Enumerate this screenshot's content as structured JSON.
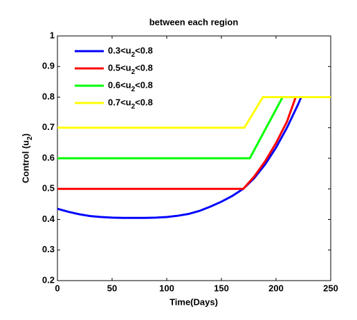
{
  "chart_data": {
    "type": "line",
    "title": "between each region",
    "x_label": "Time(Days)",
    "y_label": "Control (u2)",
    "xlim": [
      0,
      250
    ],
    "xticks": [
      0,
      50,
      100,
      150,
      200,
      250
    ],
    "ylim": [
      0.2,
      1
    ],
    "yticks": [
      0.2,
      0.3,
      0.4,
      0.5,
      0.6,
      0.7,
      0.8,
      0.9,
      1
    ],
    "grid": false,
    "legend": "upper left",
    "series": [
      {
        "name": "0.3<u2<0.8",
        "color": "#0000ff",
        "x": [
          0,
          10,
          20,
          30,
          40,
          50,
          60,
          70,
          80,
          90,
          100,
          110,
          120,
          130,
          140,
          150,
          160,
          170,
          180,
          190,
          200,
          210,
          220,
          223,
          250
        ],
        "values": [
          0.435,
          0.425,
          0.417,
          0.411,
          0.408,
          0.406,
          0.405,
          0.405,
          0.405,
          0.406,
          0.408,
          0.412,
          0.418,
          0.428,
          0.442,
          0.458,
          0.477,
          0.5,
          0.535,
          0.58,
          0.635,
          0.7,
          0.775,
          0.8,
          0.8
        ]
      },
      {
        "name": "0.5<u2<0.8",
        "color": "#ff0000",
        "x": [
          0,
          170,
          180,
          190,
          200,
          210,
          218,
          250
        ],
        "values": [
          0.5,
          0.5,
          0.54,
          0.59,
          0.65,
          0.72,
          0.8,
          0.8
        ]
      },
      {
        "name": "0.6<u2<0.8",
        "color": "#00ff00",
        "x": [
          0,
          176,
          206,
          250
        ],
        "values": [
          0.6,
          0.6,
          0.8,
          0.8
        ]
      },
      {
        "name": "0.7<u2<0.8",
        "color": "#ffff00",
        "x": [
          0,
          171,
          188,
          250
        ],
        "values": [
          0.7,
          0.7,
          0.8,
          0.8
        ]
      }
    ]
  }
}
